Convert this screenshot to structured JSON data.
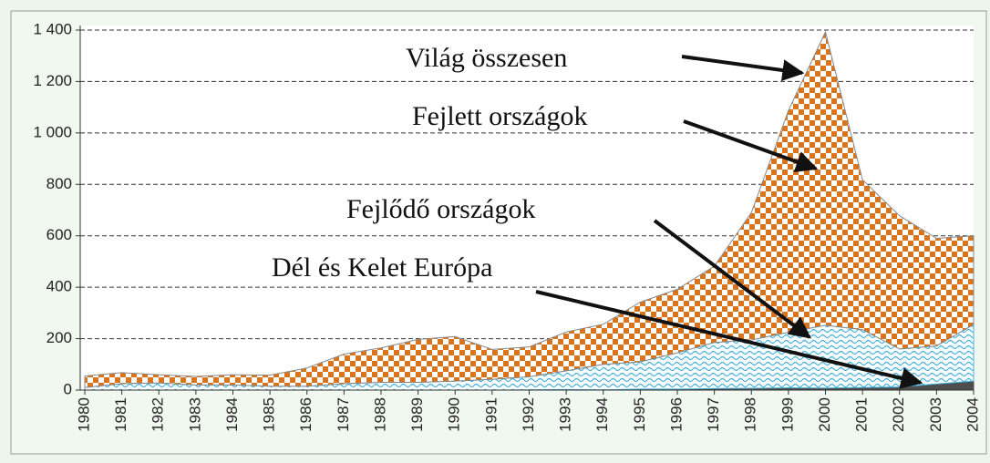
{
  "chart_data": {
    "type": "stacked_area",
    "total_label": "Világ összesen",
    "x": [
      1980,
      1981,
      1982,
      1983,
      1984,
      1985,
      1986,
      1987,
      1988,
      1989,
      1990,
      1991,
      1992,
      1993,
      1994,
      1995,
      1996,
      1997,
      1998,
      1999,
      2000,
      2001,
      2002,
      2003,
      2004
    ],
    "series": [
      {
        "name": "Dél és Kelet Európa",
        "color": "#4d4d4d",
        "values": [
          0,
          0,
          0,
          0,
          0,
          0,
          0,
          0,
          0,
          0,
          0,
          0,
          1,
          2,
          1,
          4,
          4,
          6,
          7,
          9,
          8,
          10,
          12,
          24,
          35
        ]
      },
      {
        "name": "Fejlődő országok",
        "color": "#3fb0dc",
        "values": [
          10,
          25,
          28,
          20,
          20,
          15,
          15,
          25,
          30,
          30,
          35,
          42,
          51,
          73,
          99,
          106,
          141,
          179,
          188,
          216,
          244,
          225,
          148,
          148,
          220
        ]
      },
      {
        "name": "Fejlett országok",
        "color": "#d9741e",
        "values": [
          45,
          43,
          32,
          33,
          40,
          43,
          71,
          115,
          134,
          167,
          173,
          116,
          116,
          151,
          156,
          232,
          247,
          297,
          495,
          862,
          1141,
          583,
          518,
          418,
          345
        ]
      }
    ],
    "xlim": [
      1980,
      2004
    ],
    "xticks": [
      1980,
      1981,
      1982,
      1983,
      1984,
      1985,
      1986,
      1987,
      1988,
      1989,
      1990,
      1991,
      1992,
      1993,
      1994,
      1995,
      1996,
      1997,
      1998,
      1999,
      2000,
      2001,
      2002,
      2003,
      2004
    ],
    "ylim": [
      0,
      1400
    ],
    "yticks": [
      0,
      200,
      400,
      600,
      800,
      {
        "value": 1000,
        "label": "1 000"
      },
      {
        "value": 1200,
        "label": "1 200"
      },
      {
        "value": 1400,
        "label": "1 400"
      }
    ],
    "grid": true
  }
}
